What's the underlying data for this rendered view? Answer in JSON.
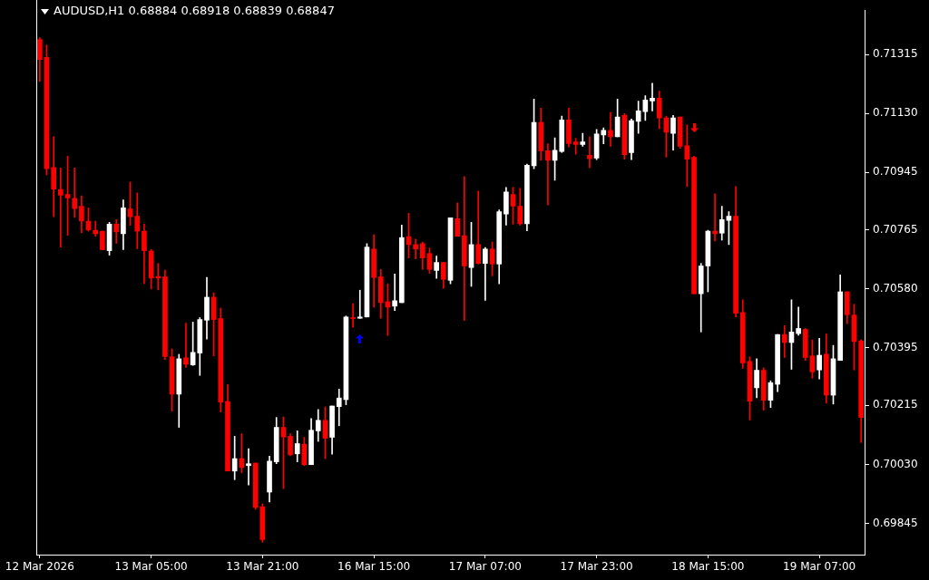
{
  "chart_data": {
    "type": "candlestick",
    "title": "AUDUSD,H1 0.68884 0.68918 0.68839 0.68847",
    "categories": [
      "12 Mar 2026",
      null,
      null,
      null,
      null,
      null,
      null,
      null,
      null,
      null,
      null,
      null,
      null,
      null,
      null,
      null,
      "13 Mar 05:00",
      null,
      null,
      null,
      null,
      null,
      null,
      null,
      null,
      null,
      null,
      null,
      null,
      null,
      null,
      null,
      "13 Mar 21:00",
      null,
      null,
      null,
      null,
      null,
      null,
      null,
      null,
      null,
      null,
      null,
      null,
      null,
      null,
      null,
      "16 Mar 15:00",
      null,
      null,
      null,
      null,
      null,
      null,
      null,
      null,
      null,
      null,
      null,
      null,
      null,
      null,
      null,
      "17 Mar 07:00",
      null,
      null,
      null,
      null,
      null,
      null,
      null,
      null,
      null,
      null,
      null,
      null,
      null,
      null,
      null,
      "17 Mar 23:00",
      null,
      null,
      null,
      null,
      null,
      null,
      null,
      null,
      null,
      null,
      null,
      null,
      null,
      null,
      null,
      "18 Mar 15:00",
      null,
      null,
      null,
      null,
      null,
      null,
      null,
      null,
      null,
      null,
      null,
      null,
      null,
      null,
      null,
      "19 Mar 07:00",
      null,
      null,
      null,
      null,
      null,
      null
    ],
    "ohlc": [
      [
        0.71362,
        0.71368,
        0.7123,
        0.71299
      ],
      [
        0.71306,
        0.71345,
        0.70938,
        0.70957
      ],
      [
        0.70961,
        0.71057,
        0.70806,
        0.70893
      ],
      [
        0.70892,
        0.70959,
        0.70711,
        0.70874
      ],
      [
        0.70876,
        0.70996,
        0.70748,
        0.70865
      ],
      [
        0.70864,
        0.70959,
        0.70804,
        0.70832
      ],
      [
        0.70839,
        0.70872,
        0.70756,
        0.70793
      ],
      [
        0.70792,
        0.70834,
        0.70761,
        0.70765
      ],
      [
        0.70764,
        0.70792,
        0.70745,
        0.70753
      ],
      [
        0.70761,
        0.70761,
        0.70703,
        0.70703
      ],
      [
        0.707,
        0.70789,
        0.70686,
        0.70783
      ],
      [
        0.70783,
        0.70797,
        0.70723,
        0.70759
      ],
      [
        0.70753,
        0.70859,
        0.70703,
        0.70834
      ],
      [
        0.70831,
        0.70915,
        0.70779,
        0.70806
      ],
      [
        0.70808,
        0.70881,
        0.70706,
        0.70761
      ],
      [
        0.70761,
        0.70783,
        0.70597,
        0.707
      ],
      [
        0.70699,
        0.70704,
        0.7058,
        0.70614
      ],
      [
        0.70619,
        0.7066,
        0.70577,
        0.70614
      ],
      [
        0.70618,
        0.70639,
        0.70359,
        0.70368
      ],
      [
        0.70367,
        0.70392,
        0.70197,
        0.7025
      ],
      [
        0.7025,
        0.70375,
        0.70146,
        0.70361
      ],
      [
        0.70364,
        0.70473,
        0.70334,
        0.70344
      ],
      [
        0.70342,
        0.70476,
        0.7034,
        0.70381
      ],
      [
        0.70379,
        0.7049,
        0.70309,
        0.70484
      ],
      [
        0.70482,
        0.70616,
        0.70423,
        0.70554
      ],
      [
        0.70554,
        0.70568,
        0.7037,
        0.70484
      ],
      [
        0.70487,
        0.7052,
        0.70194,
        0.70225
      ],
      [
        0.70227,
        0.7028,
        0.70009,
        0.70009
      ],
      [
        0.70009,
        0.70118,
        0.69982,
        0.70048
      ],
      [
        0.70048,
        0.70126,
        0.70004,
        0.7002
      ],
      [
        0.70026,
        0.70079,
        0.69965,
        0.70032
      ],
      [
        0.70034,
        0.70034,
        0.69889,
        0.69895
      ],
      [
        0.69897,
        0.69906,
        0.69786,
        0.69794
      ],
      [
        0.69943,
        0.70056,
        0.69912,
        0.7004
      ],
      [
        0.70038,
        0.70177,
        0.70032,
        0.70146
      ],
      [
        0.70146,
        0.70179,
        0.69954,
        0.70116
      ],
      [
        0.70118,
        0.70126,
        0.70057,
        0.7006
      ],
      [
        0.70063,
        0.70135,
        0.70038,
        0.70095
      ],
      [
        0.70093,
        0.70115,
        0.70026,
        0.70029
      ],
      [
        0.70029,
        0.70174,
        0.70029,
        0.70137
      ],
      [
        0.70135,
        0.70202,
        0.70102,
        0.70168
      ],
      [
        0.70168,
        0.7021,
        0.70048,
        0.70112
      ],
      [
        0.70115,
        0.70213,
        0.70062,
        0.70213
      ],
      [
        0.70211,
        0.70266,
        0.70151,
        0.70238
      ],
      [
        0.70233,
        0.70495,
        0.70217,
        0.70492
      ],
      [
        0.7049,
        0.70534,
        0.7046,
        0.70487
      ],
      [
        0.70488,
        0.70576,
        0.70488,
        0.70492
      ],
      [
        0.70492,
        0.70722,
        0.70492,
        0.70711
      ],
      [
        0.70705,
        0.7075,
        0.70523,
        0.70616
      ],
      [
        0.70618,
        0.70641,
        0.70488,
        0.70537
      ],
      [
        0.7054,
        0.70596,
        0.70434,
        0.70523
      ],
      [
        0.70526,
        0.70627,
        0.70512,
        0.70543
      ],
      [
        0.70537,
        0.7078,
        0.70537,
        0.70741
      ],
      [
        0.70744,
        0.70817,
        0.70677,
        0.70719
      ],
      [
        0.70719,
        0.70736,
        0.70674,
        0.70705
      ],
      [
        0.70722,
        0.70727,
        0.70641,
        0.70677
      ],
      [
        0.70691,
        0.70708,
        0.70629,
        0.70641
      ],
      [
        0.70638,
        0.70683,
        0.70613,
        0.70663
      ],
      [
        0.70663,
        0.70663,
        0.70582,
        0.7061
      ],
      [
        0.70607,
        0.70803,
        0.70596,
        0.70803
      ],
      [
        0.708,
        0.7085,
        0.70745,
        0.70745
      ],
      [
        0.70747,
        0.70932,
        0.70481,
        0.70652
      ],
      [
        0.70647,
        0.70789,
        0.70588,
        0.70719
      ],
      [
        0.70719,
        0.70887,
        0.70658,
        0.7066
      ],
      [
        0.7066,
        0.7071,
        0.70544,
        0.70705
      ],
      [
        0.70705,
        0.70727,
        0.70621,
        0.70658
      ],
      [
        0.70658,
        0.70828,
        0.70596,
        0.70822
      ],
      [
        0.70815,
        0.70898,
        0.7078,
        0.70884
      ],
      [
        0.70876,
        0.70898,
        0.70783,
        0.7084
      ],
      [
        0.70839,
        0.70895,
        0.7078,
        0.70784
      ],
      [
        0.70784,
        0.70971,
        0.70762,
        0.70968
      ],
      [
        0.70966,
        0.71175,
        0.70957,
        0.71102
      ],
      [
        0.71102,
        0.71147,
        0.70983,
        0.71013
      ],
      [
        0.71013,
        0.71035,
        0.70843,
        0.70983
      ],
      [
        0.70983,
        0.71054,
        0.70921,
        0.71015
      ],
      [
        0.71011,
        0.71122,
        0.71008,
        0.7111
      ],
      [
        0.7111,
        0.71147,
        0.71025,
        0.71036
      ],
      [
        0.71041,
        0.71052,
        0.71002,
        0.71033
      ],
      [
        0.71033,
        0.71068,
        0.71027,
        0.71041
      ],
      [
        0.70999,
        0.71057,
        0.7096,
        0.70988
      ],
      [
        0.7099,
        0.7108,
        0.70985,
        0.71066
      ],
      [
        0.71063,
        0.71085,
        0.71035,
        0.71077
      ],
      [
        0.71077,
        0.71133,
        0.71027,
        0.71057
      ],
      [
        0.71057,
        0.71175,
        0.71057,
        0.71119
      ],
      [
        0.71124,
        0.7113,
        0.70987,
        0.71001
      ],
      [
        0.71007,
        0.71113,
        0.70985,
        0.71108
      ],
      [
        0.71105,
        0.71169,
        0.71068,
        0.71138
      ],
      [
        0.71136,
        0.71186,
        0.71108,
        0.71172
      ],
      [
        0.71169,
        0.71225,
        0.71138,
        0.71178
      ],
      [
        0.71178,
        0.712,
        0.71082,
        0.71116
      ],
      [
        0.71116,
        0.71122,
        0.70993,
        0.71071
      ],
      [
        0.71068,
        0.71124,
        0.71015,
        0.71116
      ],
      [
        0.71119,
        0.71119,
        0.71021,
        0.71027
      ],
      [
        0.71029,
        0.71094,
        0.70901,
        0.70987
      ],
      [
        0.70993,
        0.70996,
        0.70565,
        0.70565
      ],
      [
        0.70565,
        0.7066,
        0.70445,
        0.70652
      ],
      [
        0.70652,
        0.70764,
        0.70571,
        0.70761
      ],
      [
        0.70761,
        0.70878,
        0.7073,
        0.70753
      ],
      [
        0.70755,
        0.70839,
        0.70733,
        0.70797
      ],
      [
        0.70795,
        0.70822,
        0.70719,
        0.70808
      ],
      [
        0.70808,
        0.70901,
        0.70492,
        0.70504
      ],
      [
        0.70506,
        0.70546,
        0.70331,
        0.70348
      ],
      [
        0.70353,
        0.70367,
        0.70169,
        0.70228
      ],
      [
        0.7027,
        0.70361,
        0.70239,
        0.70325
      ],
      [
        0.70325,
        0.70333,
        0.702,
        0.70231
      ],
      [
        0.70231,
        0.70292,
        0.70208,
        0.70286
      ],
      [
        0.70281,
        0.70437,
        0.70258,
        0.70437
      ],
      [
        0.70437,
        0.70465,
        0.70365,
        0.70412
      ],
      [
        0.70412,
        0.70546,
        0.70328,
        0.70445
      ],
      [
        0.7044,
        0.70523,
        0.70435,
        0.70456
      ],
      [
        0.70453,
        0.70456,
        0.70356,
        0.70365
      ],
      [
        0.7037,
        0.7042,
        0.703,
        0.7032
      ],
      [
        0.70326,
        0.70425,
        0.70298,
        0.70372
      ],
      [
        0.70375,
        0.70439,
        0.70222,
        0.70247
      ],
      [
        0.70247,
        0.70403,
        0.70219,
        0.70361
      ],
      [
        0.70356,
        0.70624,
        0.70356,
        0.70571
      ],
      [
        0.70571,
        0.70571,
        0.70471,
        0.70499
      ],
      [
        0.70498,
        0.70532,
        0.70326,
        0.70415
      ],
      [
        0.70417,
        0.7042,
        0.70099,
        0.70177
      ]
    ],
    "colors": [
      "#ff0000",
      "#ff0000",
      "#ff0000",
      "#ff0000",
      "#ff0000",
      "#ff0000",
      "#ff0000",
      "#ff0000",
      "#ff0000",
      "#ff0000",
      "#ffffff",
      "#ff0000",
      "#ffffff",
      "#ff0000",
      "#ff0000",
      "#ff0000",
      "#ff0000",
      "#ff0000",
      "#ff0000",
      "#ff0000",
      "#ffffff",
      "#ff0000",
      "#ffffff",
      "#ffffff",
      "#ffffff",
      "#ff0000",
      "#ff0000",
      "#ff0000",
      "#ffffff",
      "#ff0000",
      "#ffffff",
      "#ff0000",
      "#ff0000",
      "#ffffff",
      "#ffffff",
      "#ff0000",
      "#ff0000",
      "#ffffff",
      "#ff0000",
      "#ffffff",
      "#ffffff",
      "#ff0000",
      "#ffffff",
      "#ffffff",
      "#ffffff",
      "#ff0000",
      "#ffffff",
      "#ffffff",
      "#ff0000",
      "#ff0000",
      "#ff0000",
      "#ffffff",
      "#ffffff",
      "#ff0000",
      "#ff0000",
      "#ff0000",
      "#ff0000",
      "#ffffff",
      "#ff0000",
      "#ffffff",
      "#ff0000",
      "#ff0000",
      "#ffffff",
      "#ff0000",
      "#ffffff",
      "#ff0000",
      "#ffffff",
      "#ffffff",
      "#ff0000",
      "#ff0000",
      "#ffffff",
      "#ffffff",
      "#ff0000",
      "#ff0000",
      "#ffffff",
      "#ffffff",
      "#ff0000",
      "#ff0000",
      "#ffffff",
      "#ff0000",
      "#ffffff",
      "#ffffff",
      "#ff0000",
      "#ffffff",
      "#ff0000",
      "#ffffff",
      "#ffffff",
      "#ffffff",
      "#ffffff",
      "#ff0000",
      "#ff0000",
      "#ffffff",
      "#ff0000",
      "#ff0000",
      "#ff0000",
      "#ffffff",
      "#ffffff",
      "#ff0000",
      "#ffffff",
      "#ffffff",
      "#ff0000",
      "#ff0000",
      "#ff0000",
      "#ffffff",
      "#ff0000",
      "#ffffff",
      "#ffffff",
      "#ff0000",
      "#ffffff",
      "#ffffff",
      "#ff0000",
      "#ff0000",
      "#ffffff",
      "#ff0000",
      "#ffffff",
      "#ffffff",
      "#ff0000",
      "#ff0000",
      "#ff0000"
    ],
    "ylim": [
      0.69747,
      0.71454
    ],
    "yticks": [
      0.71315,
      {
        "value": 0.7113,
        "label": "0.71130"
      },
      0.70945,
      0.70765,
      {
        "value": 0.7058,
        "label": "0.70580"
      },
      0.70395,
      0.70215,
      {
        "value": 0.7003,
        "label": "0.70030"
      },
      0.69845
    ]
  }
}
